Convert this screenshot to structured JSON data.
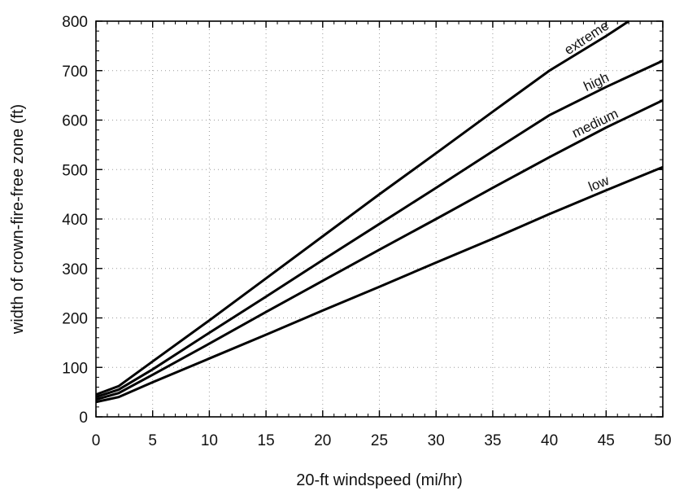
{
  "chart_data": {
    "type": "line",
    "title": "",
    "xlabel": "20-ft windspeed (mi/hr)",
    "ylabel": "width of crown-fire-free zone (ft)",
    "xlim": [
      0,
      50
    ],
    "ylim": [
      0,
      800
    ],
    "x_ticks": [
      0,
      5,
      10,
      15,
      20,
      25,
      30,
      35,
      40,
      45,
      50
    ],
    "y_ticks": [
      0,
      100,
      200,
      300,
      400,
      500,
      600,
      700,
      800
    ],
    "grid": true,
    "legend": "none",
    "series": [
      {
        "name": "extreme",
        "x": [
          0,
          2,
          5,
          10,
          15,
          20,
          25,
          30,
          35,
          40,
          45,
          47
        ],
        "y": [
          45,
          62,
          112,
          195,
          280,
          365,
          450,
          533,
          617,
          700,
          770,
          800
        ]
      },
      {
        "name": "high",
        "x": [
          0,
          2,
          5,
          10,
          15,
          20,
          25,
          30,
          35,
          40,
          45,
          50
        ],
        "y": [
          40,
          55,
          96,
          170,
          243,
          317,
          390,
          463,
          537,
          610,
          667,
          720
        ]
      },
      {
        "name": "medium",
        "x": [
          0,
          2,
          5,
          10,
          15,
          20,
          25,
          30,
          35,
          40,
          45,
          50
        ],
        "y": [
          35,
          48,
          85,
          148,
          212,
          275,
          338,
          400,
          463,
          525,
          585,
          640
        ]
      },
      {
        "name": "low",
        "x": [
          0,
          2,
          5,
          10,
          15,
          20,
          25,
          30,
          35,
          40,
          45,
          50
        ],
        "y": [
          30,
          40,
          70,
          118,
          166,
          215,
          263,
          312,
          360,
          410,
          458,
          505
        ]
      }
    ]
  }
}
